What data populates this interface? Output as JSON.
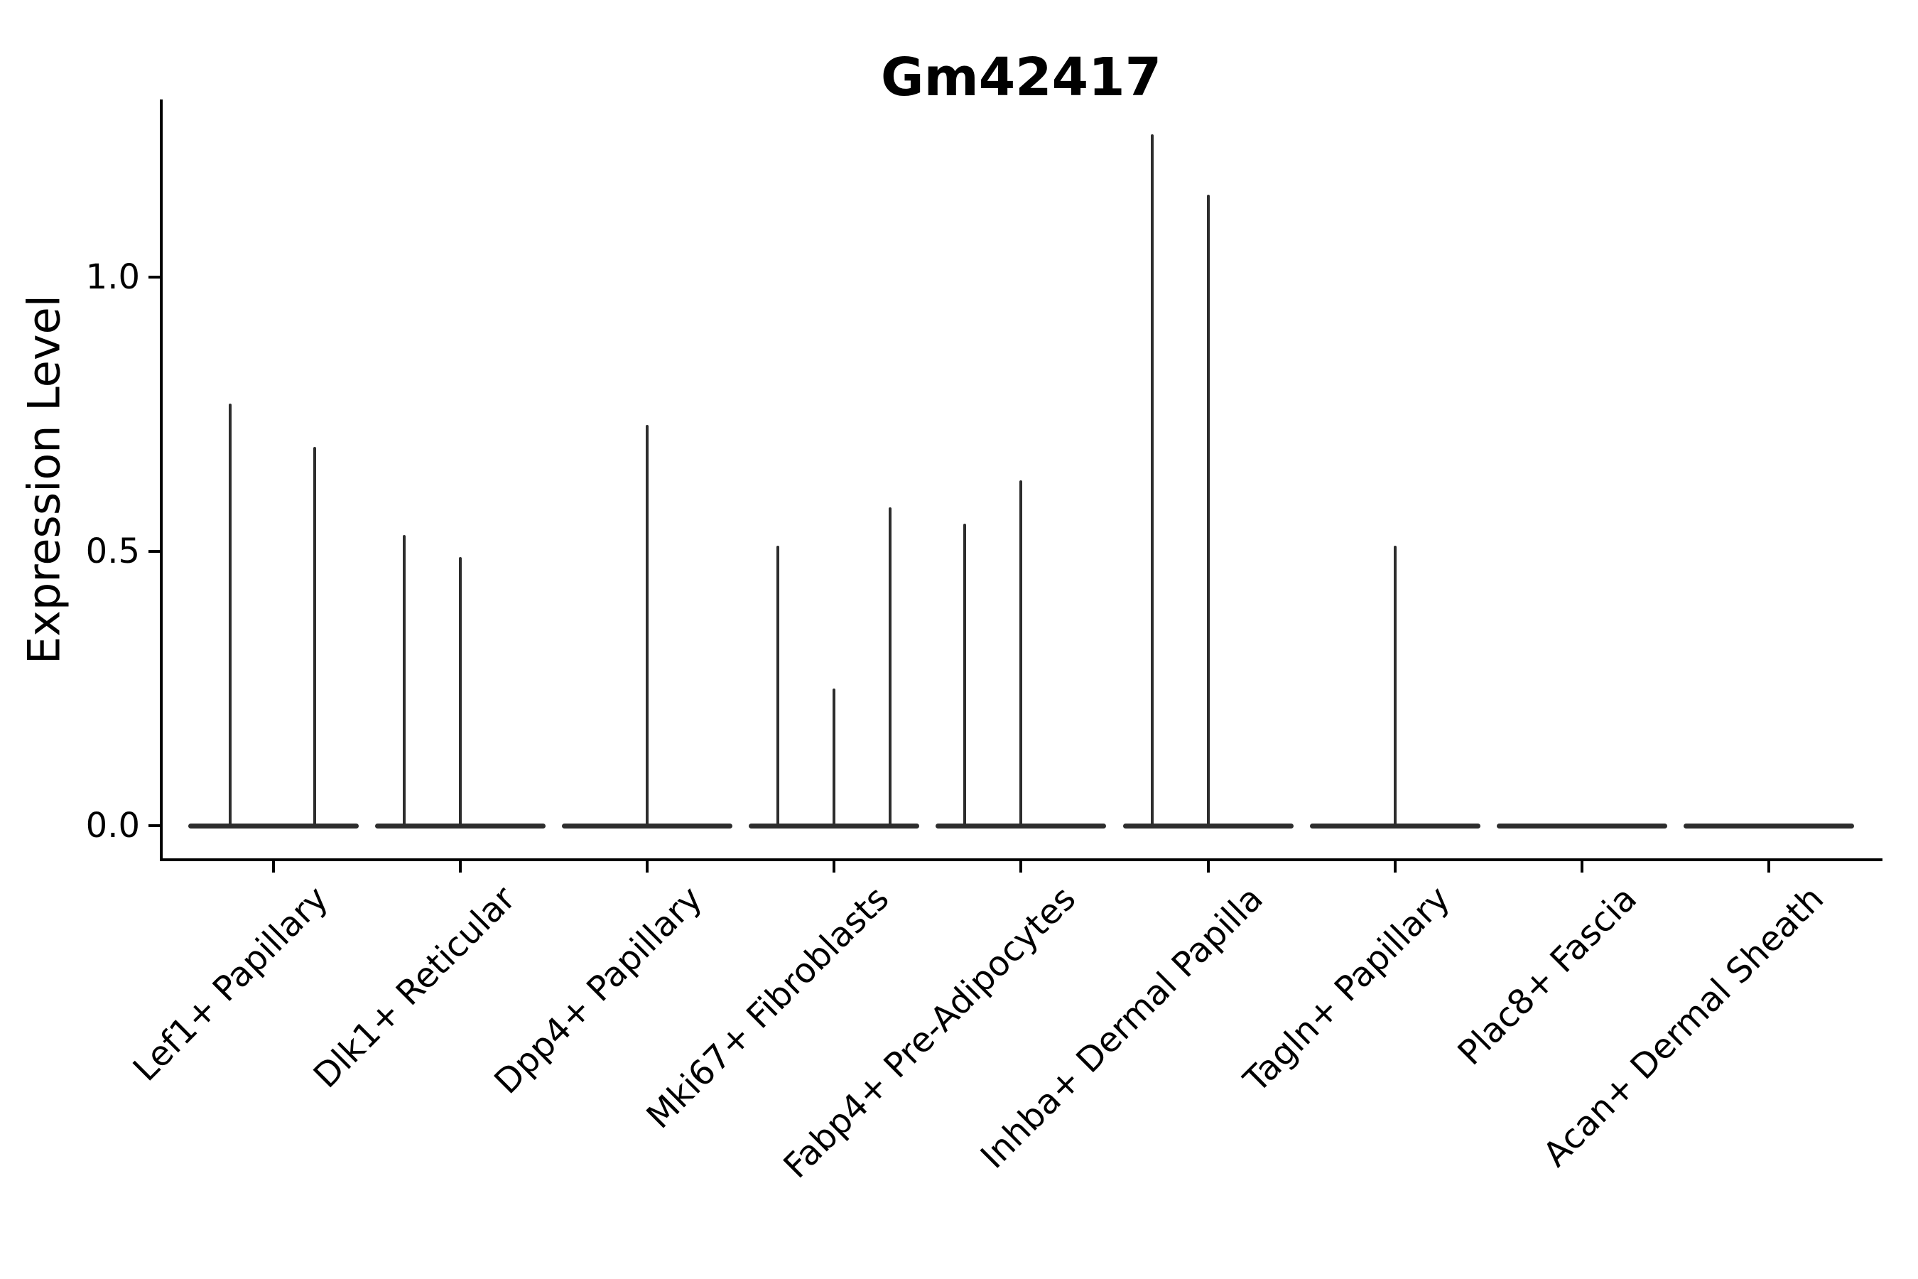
{
  "chart_data": {
    "type": "violin",
    "title": "Gm42417",
    "xlabel": "",
    "ylabel": "Expression Level",
    "ylim": [
      -0.06,
      1.32
    ],
    "grid": false,
    "legend": null,
    "violin_color": "#2d2d2d",
    "spine_color": "#000000",
    "text_color": "#000000",
    "group_width": 0.91,
    "yticks": [
      {
        "value": 0.0,
        "label": "0.0"
      },
      {
        "value": 0.5,
        "label": "0.5"
      },
      {
        "value": 1.0,
        "label": "1.0"
      }
    ],
    "categories": [
      "Lef1+ Papillary",
      "Dlk1+ Reticular",
      "Dpp4+ Papillary",
      "Mki67+ Fibroblasts",
      "Fabp4+ Pre-Adipocytes",
      "Inhba+ Dermal Papilla",
      "Tagln+ Papillary",
      "Plac8+ Fascia",
      "Acan+ Dermal Sheath"
    ],
    "groups": [
      {
        "label": "Lef1+ Papillary",
        "violins": [
          {
            "offset": -0.23,
            "max": 0.77
          },
          {
            "offset": 0.22,
            "max": 0.69
          }
        ]
      },
      {
        "label": "Dlk1+ Reticular",
        "violins": [
          {
            "offset": -0.3,
            "max": 0.53
          },
          {
            "offset": 0.0,
            "max": 0.49
          }
        ]
      },
      {
        "label": "Dpp4+ Papillary",
        "violins": [
          {
            "offset": 0.0,
            "max": 0.73
          }
        ]
      },
      {
        "label": "Mki67+ Fibroblasts",
        "violins": [
          {
            "offset": -0.3,
            "max": 0.51
          },
          {
            "offset": 0.0,
            "max": 0.25
          },
          {
            "offset": 0.3,
            "max": 0.58
          }
        ]
      },
      {
        "label": "Fabp4+ Pre-Adipocytes",
        "violins": [
          {
            "offset": -0.3,
            "max": 0.55
          },
          {
            "offset": 0.0,
            "max": 0.63
          }
        ]
      },
      {
        "label": "Inhba+ Dermal Papilla",
        "violins": [
          {
            "offset": -0.3,
            "max": 1.26
          },
          {
            "offset": 0.0,
            "max": 1.15
          }
        ]
      },
      {
        "label": "Tagln+ Papillary",
        "violins": [
          {
            "offset": 0.0,
            "max": 0.51
          }
        ]
      },
      {
        "label": "Plac8+ Fascia",
        "violins": []
      },
      {
        "label": "Acan+ Dermal Sheath",
        "violins": []
      }
    ]
  }
}
